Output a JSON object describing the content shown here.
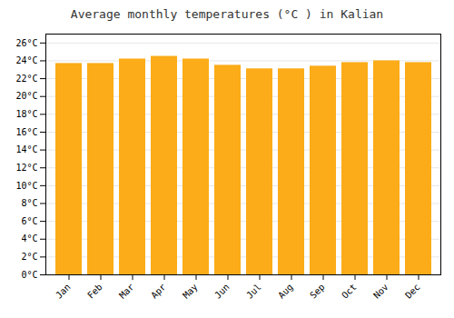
{
  "chart_data": {
    "type": "bar",
    "title": "Average monthly temperatures (°C ) in Kalian",
    "categories": [
      "Jan",
      "Feb",
      "Mar",
      "Apr",
      "May",
      "Jun",
      "Jul",
      "Aug",
      "Sep",
      "Oct",
      "Nov",
      "Dec"
    ],
    "values": [
      23.7,
      23.7,
      24.2,
      24.5,
      24.2,
      23.5,
      23.1,
      23.1,
      23.4,
      23.8,
      24.0,
      23.8
    ],
    "color": "#FBAC18",
    "ylim": [
      0,
      27
    ],
    "yticks": [
      {
        "value": 0,
        "label": "0°C"
      },
      {
        "value": 2,
        "label": "2°C"
      },
      {
        "value": 4,
        "label": "4°C"
      },
      {
        "value": 6,
        "label": "6°C"
      },
      {
        "value": 8,
        "label": "8°C"
      },
      {
        "value": 10,
        "label": "10°C"
      },
      {
        "value": 12,
        "label": "12°C"
      },
      {
        "value": 14,
        "label": "14°C"
      },
      {
        "value": 16,
        "label": "16°C"
      },
      {
        "value": 18,
        "label": "18°C"
      },
      {
        "value": 20,
        "label": "20°C"
      },
      {
        "value": 22,
        "label": "22°C"
      },
      {
        "value": 24,
        "label": "24°C"
      },
      {
        "value": 26,
        "label": "26°C"
      }
    ],
    "grid": true
  }
}
